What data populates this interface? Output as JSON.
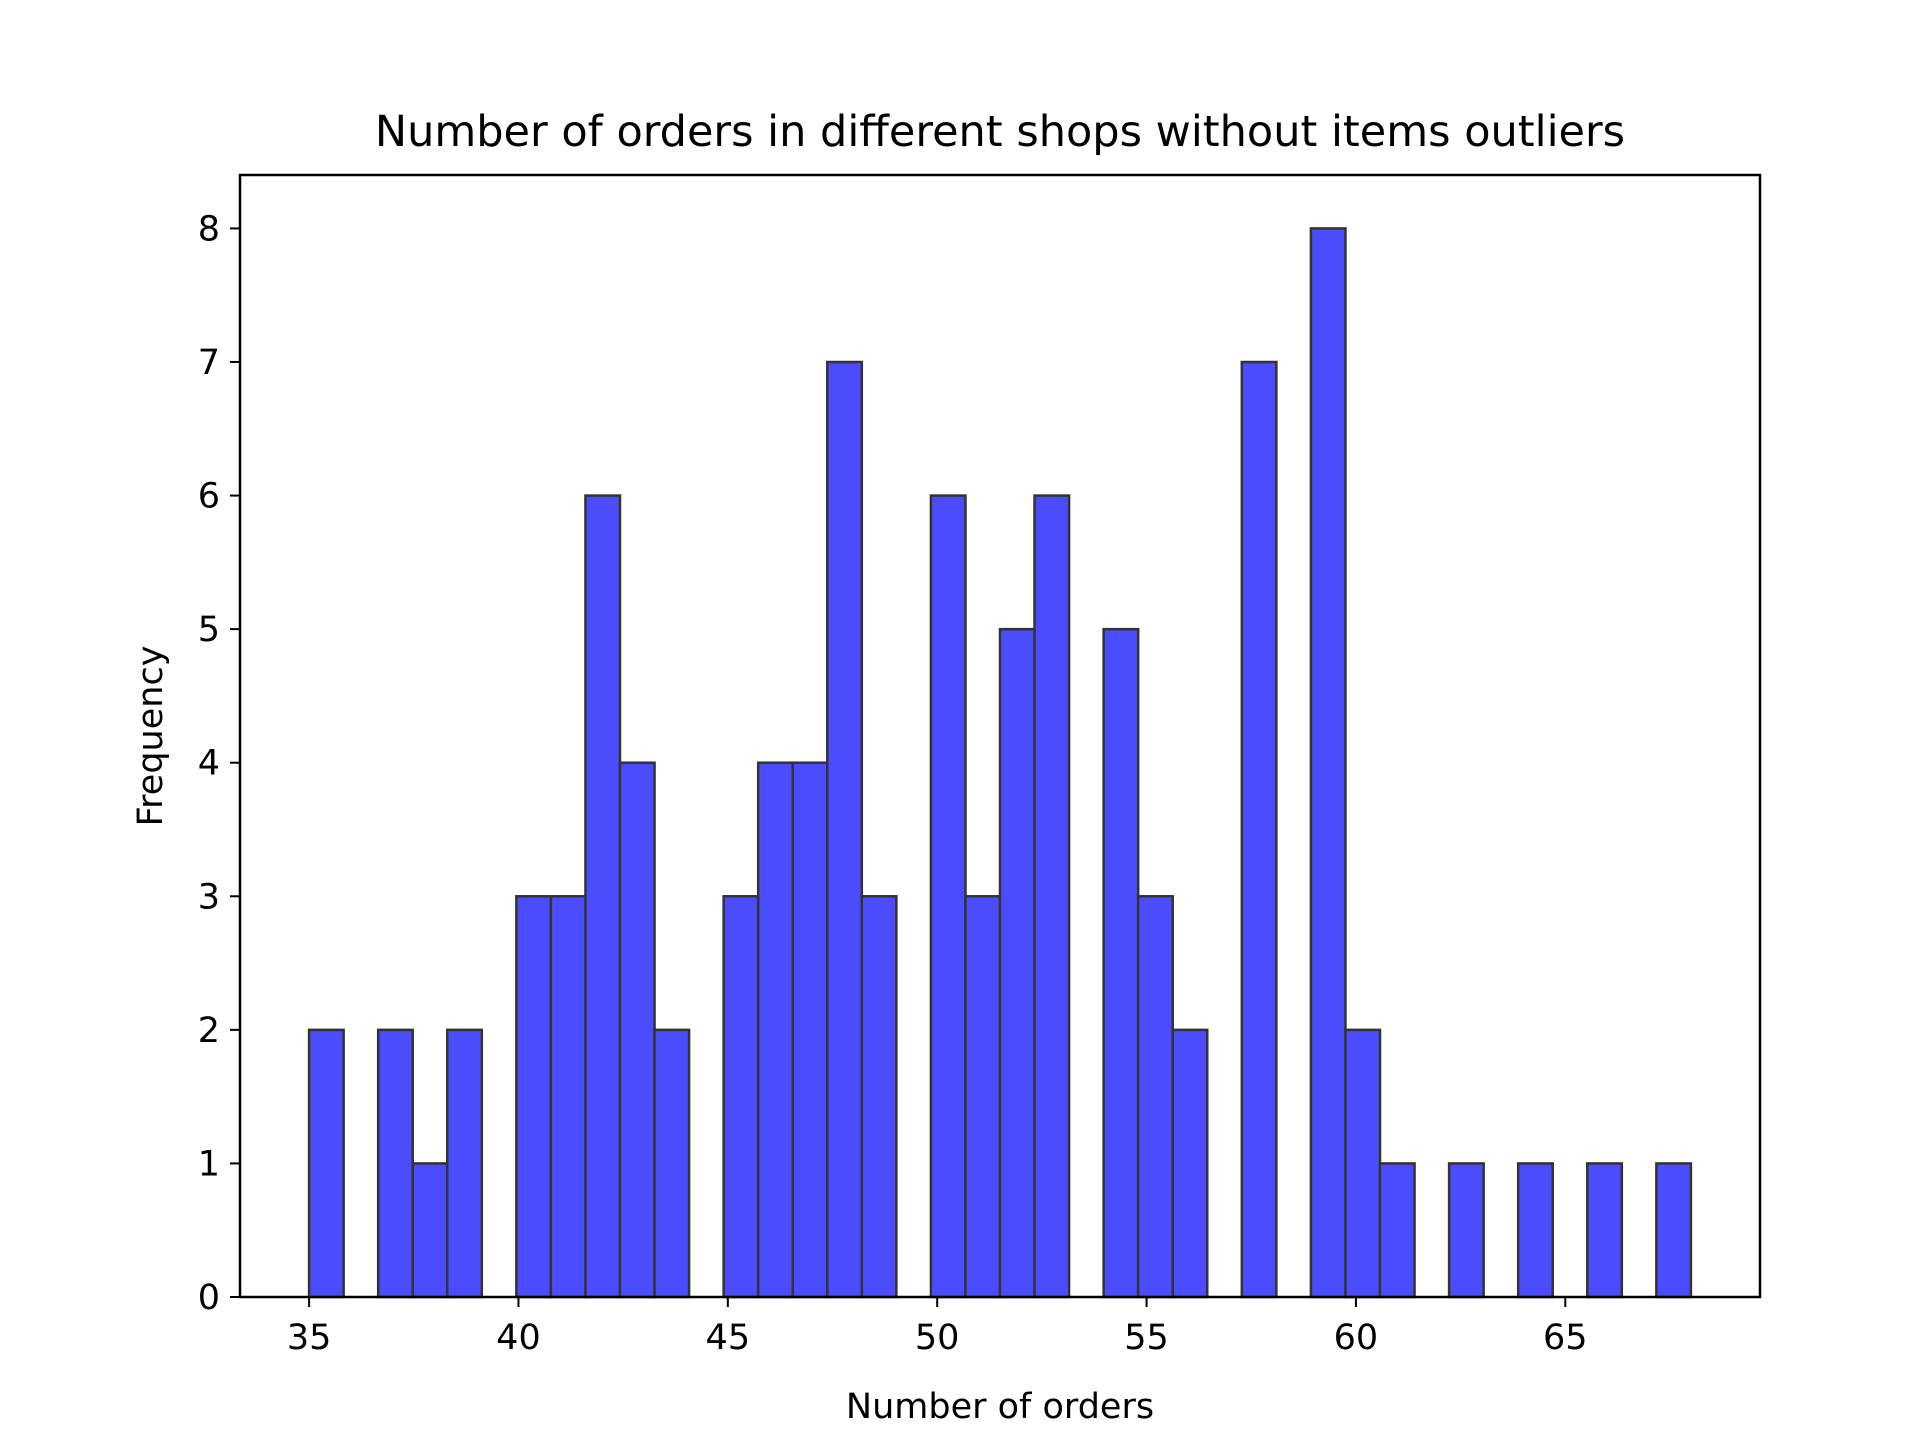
{
  "chart_data": {
    "type": "bar",
    "title": "Number of orders in different shops without items outliers",
    "xlabel": "Number of orders",
    "ylabel": "Frequency",
    "bin_width": 0.825,
    "x": [
      35.0,
      35.825,
      36.65,
      37.475,
      38.3,
      39.125,
      39.95,
      40.775,
      41.6,
      42.425,
      43.25,
      44.075,
      44.9,
      45.725,
      46.55,
      47.375,
      48.2,
      49.025,
      49.85,
      50.675,
      51.5,
      52.325,
      53.15,
      53.975,
      54.8,
      55.625,
      56.45,
      57.275,
      58.1,
      58.925,
      59.75,
      60.575,
      61.4,
      62.225,
      63.05,
      63.875,
      64.7,
      65.525,
      66.35,
      67.175
    ],
    "values": [
      2,
      0,
      2,
      1,
      2,
      0,
      3,
      3,
      6,
      4,
      2,
      0,
      3,
      4,
      4,
      7,
      3,
      0,
      6,
      3,
      5,
      6,
      0,
      5,
      3,
      2,
      0,
      7,
      0,
      8,
      2,
      1,
      0,
      1,
      0,
      1,
      0,
      1,
      0,
      1
    ],
    "xlim": [
      33.35,
      69.65
    ],
    "ylim": [
      0,
      8.4
    ],
    "xticks": [
      35,
      40,
      45,
      50,
      55,
      60,
      65
    ],
    "yticks": [
      0,
      1,
      2,
      3,
      4,
      5,
      6,
      7,
      8
    ],
    "bar_color": "#4c4cff",
    "edge_color": "#333333",
    "grid": false,
    "legend": "none"
  }
}
